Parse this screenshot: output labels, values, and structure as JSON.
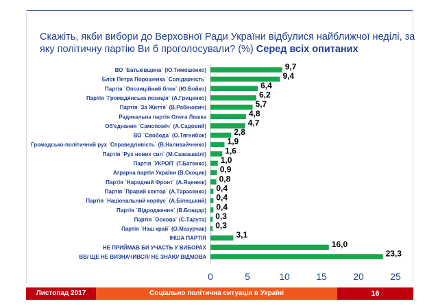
{
  "title": {
    "question": "Скажіть, якби вибори до Верховної Ради України відбулися найближчої неділі, за яку політичну партію Ви б проголосували? (%)",
    "subset": "Серед всіх опитаних"
  },
  "footer": {
    "date": "Листопад 2017",
    "caption": "Соціально політична ситуація в Україні",
    "page": "16"
  },
  "chart_data": {
    "type": "bar",
    "orientation": "horizontal",
    "bar_color": "#1aa650",
    "categories": [
      "ВО `Батьківщина` (Ю.Тимошенко)",
      "Блок Петра Порошенка `Солідарність`",
      "Партія `Опозиційний блок` (Ю.Бойко)",
      "Партія `Громадянська позиція` (А.Гриценко)",
      "Партія `За Життя` (В.Рабінович)",
      "Радикальна партія Олега Ляшка",
      "Об'єднання `Самопоміч` (А.Садовий)",
      "ВО `Свобода` (О.Тягнибок)",
      "Громадсько-політичний рух `Справедливість` (В.Наливайченко)",
      "Партія `Рух нових сил` (М.Саакашвілі)",
      "Партія `УКРОП` (Т.Батенко)",
      "Аграрна партія України (В.Скоцик)",
      "Партія `Народний Фронт` (А.Яценюк)",
      "Партія `Правий сектор` (А.Тарасенко)",
      "Партія `Національний корпус` (А.Білецький)",
      "Партія `Відродження` (В.Бондар)",
      "Партія `Основа` (С.Тарута)",
      "Партія `Наш край` (О.Мазурчак)",
      "ІНША ПАРТІЯ",
      "НЕ ПРИЙМАВ БИ УЧАСТЬ У ВИБОРАХ",
      "ВВ/ ЩЕ НЕ ВИЗНАЧИВСЯ/ НЕ ЗНАЮ/ ВІДМОВА"
    ],
    "values": [
      9.7,
      9.4,
      6.4,
      6.2,
      5.7,
      4.8,
      4.7,
      2.8,
      1.9,
      1.6,
      1.0,
      0.9,
      0.8,
      0.4,
      0.4,
      0.4,
      0.3,
      0.3,
      3.1,
      16.0,
      23.3
    ],
    "value_labels": [
      "9,7",
      "9,4",
      "6,4",
      "6,2",
      "5,7",
      "4,8",
      "4,7",
      "2,8",
      "1,9",
      "1,6",
      "1,0",
      "0,9",
      "0,8",
      "0,4",
      "0,4",
      "0,4",
      "0,3",
      "0,3",
      "3,1",
      "16,0",
      "23,3"
    ],
    "xlim": [
      0,
      25
    ],
    "x_ticks": [
      0,
      5,
      10,
      15,
      20,
      25
    ],
    "grid": false
  }
}
